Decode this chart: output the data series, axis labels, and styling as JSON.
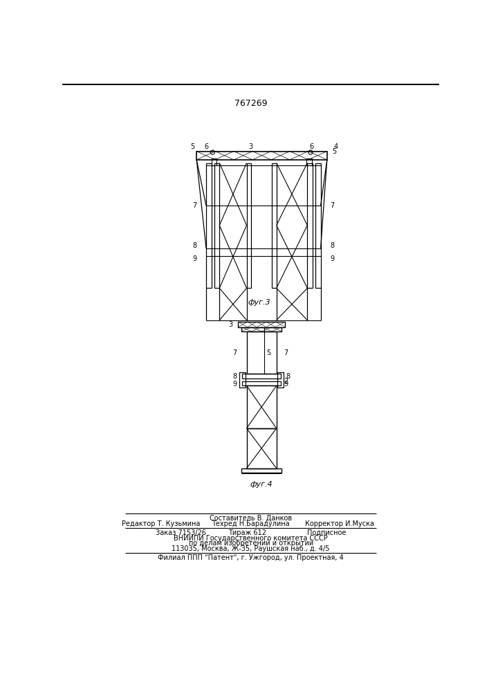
{
  "patent_number": "767269",
  "fig3_caption": "фуг.3",
  "fig4_caption": "фуг.4",
  "footer_line1_center_top": "Составитель В. Данков",
  "footer_line1_left": "Редактор Т. Кузьмина",
  "footer_line1_center": "Техред Н.Барадулина",
  "footer_line1_right": "Корректор И.Муска",
  "footer_line2_left": "Заказ 7153/26",
  "footer_line2_center": "Тираж 612",
  "footer_line2_right": "Подписное",
  "footer_line3": "ВНИИПИ Государственного комитета СССР",
  "footer_line4": "по делам изобретений и открытий",
  "footer_line5": "113035, Москва, Ж-35, Раушская наб., д. 4/5",
  "footer_line6": "Филиал ППП \"Патент\", г. Ужгород, ул. Проектная, 4",
  "line_color": "#000000",
  "bg_color": "#ffffff"
}
